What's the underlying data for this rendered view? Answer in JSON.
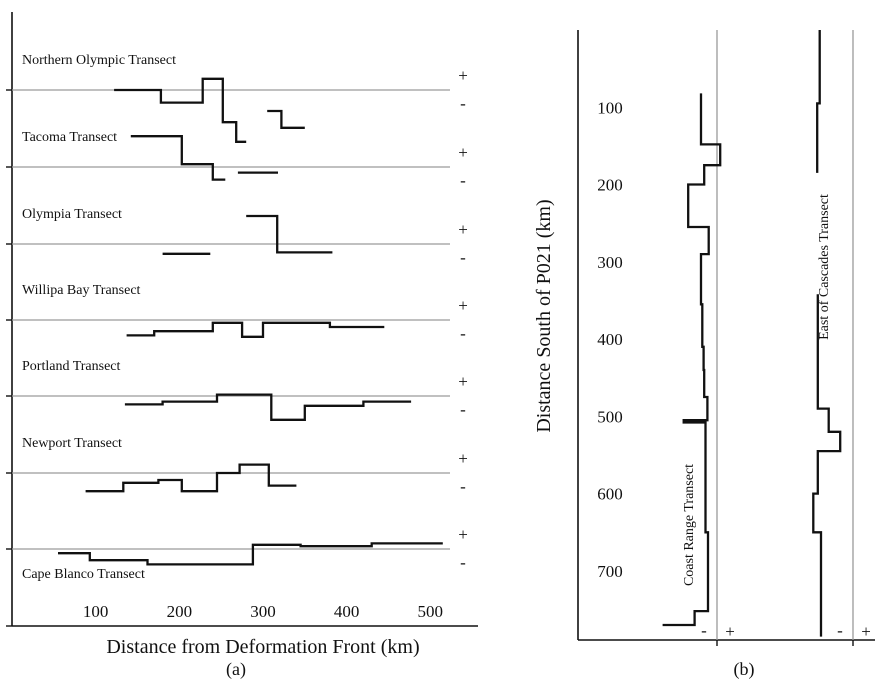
{
  "chart_data": [
    {
      "type": "line",
      "panel_label": "(a)",
      "xlabel": "Distance from Deformation Front (km)",
      "ylabel": "",
      "x_ticks": [
        100,
        200,
        300,
        400,
        500
      ],
      "xlim": [
        0,
        540
      ],
      "sign_labels": {
        "plus": "+",
        "minus": "-"
      },
      "series": [
        {
          "name": "Northern Olympic Transect",
          "segments": [
            {
              "x": [
                122,
                178,
                178,
                228,
                228,
                252,
                252,
                268,
                268,
                280
              ],
              "y": [
                0,
                0,
                -0.45,
                -0.45,
                0.4,
                0.4,
                -1.15,
                -1.15,
                -1.85,
                -1.85
              ]
            },
            {
              "x": [
                305,
                322,
                322,
                350
              ],
              "y": [
                -0.75,
                -0.75,
                -1.35,
                -1.35
              ]
            }
          ]
        },
        {
          "name": "Tacoma Transect",
          "segments": [
            {
              "x": [
                142,
                203,
                203,
                240,
                240,
                255
              ],
              "y": [
                1.1,
                1.1,
                0.1,
                0.1,
                -0.45,
                -0.45
              ]
            },
            {
              "x": [
                270,
                318
              ],
              "y": [
                -0.2,
                -0.2
              ]
            }
          ]
        },
        {
          "name": "Olympia Transect",
          "segments": [
            {
              "x": [
                280,
                317,
                317,
                383
              ],
              "y": [
                1.0,
                1.0,
                -0.3,
                -0.3
              ]
            },
            {
              "x": [
                180,
                237
              ],
              "y": [
                -0.35,
                -0.35
              ]
            }
          ]
        },
        {
          "name": "Willipa Bay Transect",
          "segments": [
            {
              "x": [
                137,
                170,
                170,
                240,
                240,
                275,
                275,
                300,
                300,
                380,
                380,
                445
              ],
              "y": [
                -0.55,
                -0.55,
                -0.4,
                -0.4,
                -0.1,
                -0.1,
                -0.6,
                -0.6,
                -0.1,
                -0.1,
                -0.25,
                -0.25
              ]
            }
          ]
        },
        {
          "name": "Portland Transect",
          "segments": [
            {
              "x": [
                135,
                180,
                180,
                245,
                245,
                310,
                310,
                350,
                350,
                420,
                420,
                477
              ],
              "y": [
                -0.3,
                -0.3,
                -0.2,
                -0.2,
                0.05,
                0.05,
                -0.85,
                -0.85,
                -0.35,
                -0.35,
                -0.2,
                -0.2
              ]
            }
          ]
        },
        {
          "name": "Newport Transect",
          "segments": [
            {
              "x": [
                88,
                133,
                133,
                175,
                175,
                203,
                203,
                245,
                245,
                272,
                272,
                307,
                307,
                340
              ],
              "y": [
                -0.65,
                -0.65,
                -0.35,
                -0.35,
                -0.25,
                -0.25,
                -0.65,
                -0.65,
                0.0,
                0.0,
                0.3,
                0.3,
                -0.45,
                -0.45
              ]
            }
          ]
        },
        {
          "name": "Cape Blanco Transect",
          "segments": [
            {
              "x": [
                55,
                93,
                93,
                162,
                162,
                288,
                288,
                345,
                345,
                430,
                430,
                515
              ],
              "y": [
                -0.15,
                -0.15,
                -0.4,
                -0.4,
                -0.55,
                -0.55,
                0.15,
                0.15,
                0.1,
                0.1,
                0.2,
                0.2
              ]
            }
          ]
        }
      ]
    },
    {
      "type": "line",
      "panel_label": "(b)",
      "xlabel": "",
      "ylabel": "Distance South of P021 (km)",
      "y_ticks": [
        100,
        200,
        300,
        400,
        500,
        600,
        700
      ],
      "ylim": [
        0,
        790
      ],
      "sign_labels": {
        "minus": "-",
        "plus": "+"
      },
      "series": [
        {
          "name": "Coast Range Transect",
          "segments": [
            {
              "x": [
                -0.25,
                -0.25,
                0.05,
                0.05,
                -0.2,
                -0.2,
                -0.45,
                -0.45,
                -0.13,
                -0.13,
                -0.25,
                -0.25,
                -0.23,
                -0.23,
                -0.21,
                -0.21,
                -0.2,
                -0.2,
                -0.15,
                -0.15,
                -0.52,
                -0.52,
                -0.18,
                -0.18,
                -0.14,
                -0.14,
                -0.35,
                -0.35,
                -0.85
              ],
              "y": [
                82,
                148,
                148,
                175,
                175,
                200,
                200,
                255,
                255,
                290,
                290,
                355,
                355,
                410,
                410,
                440,
                440,
                475,
                475,
                505,
                505,
                508,
                508,
                650,
                650,
                752,
                752,
                770,
                770
              ]
            }
          ]
        },
        {
          "name": "East of Cascades Transect",
          "segments": [
            {
              "x": [
                -0.52,
                -0.52,
                -0.56,
                -0.56
              ],
              "y": [
                0,
                95,
                95,
                185
              ]
            },
            {
              "x": [
                -0.55,
                -0.55,
                -0.38,
                -0.38,
                -0.2,
                -0.2,
                -0.55,
                -0.55,
                -0.62,
                -0.62,
                -0.5,
                -0.5
              ],
              "y": [
                342,
                490,
                490,
                520,
                520,
                545,
                545,
                600,
                600,
                650,
                650,
                785
              ]
            }
          ]
        }
      ]
    }
  ]
}
